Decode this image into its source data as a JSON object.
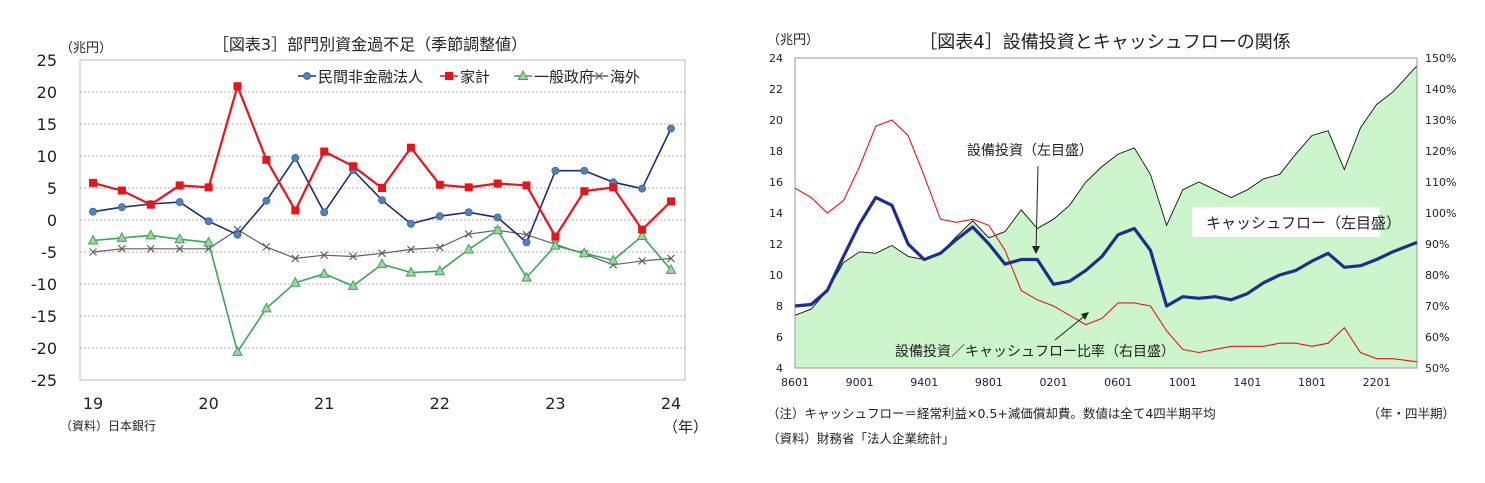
{
  "chart_data": [
    {
      "type": "line",
      "title": "［図表3］部門別資金過不足（季節調整値）",
      "ylabel": "（兆円）",
      "xlabel": "（年）",
      "source": "（資料）日本銀行",
      "ylim": [
        -25,
        25
      ],
      "yticks": [
        25,
        20,
        15,
        10,
        5,
        0,
        -5,
        -10,
        -15,
        -20,
        -25
      ],
      "xticks": [
        "19",
        "20",
        "21",
        "22",
        "23",
        "24"
      ],
      "grid": true,
      "legend_position": "top",
      "series": [
        {
          "name": "民間非金融法人",
          "color": "#4f81bd",
          "marker": "circle",
          "values": [
            1.3,
            2.0,
            2.5,
            2.8,
            -0.2,
            -2.3,
            3.0,
            9.7,
            1.2,
            7.8,
            3.1,
            -0.6,
            0.6,
            1.2,
            0.4,
            -3.5,
            7.7,
            7.7,
            5.9,
            4.9,
            14.3
          ]
        },
        {
          "name": "家計",
          "color": "#e8141c",
          "marker": "square",
          "values": [
            5.8,
            4.6,
            2.4,
            5.4,
            5.1,
            20.9,
            9.4,
            1.5,
            10.7,
            8.4,
            5.0,
            11.3,
            5.5,
            5.1,
            5.7,
            5.4,
            -2.6,
            4.5,
            5.1,
            -1.5,
            2.9
          ]
        },
        {
          "name": "一般政府",
          "color": "#3aa655",
          "marker": "triangle",
          "values": [
            -3.2,
            -2.8,
            -2.4,
            -3.0,
            -3.5,
            -20.6,
            -13.8,
            -9.8,
            -8.4,
            -10.3,
            -6.9,
            -8.2,
            -8.0,
            -4.6,
            -1.6,
            -9.0,
            -4.0,
            -5.2,
            -6.3,
            -2.5,
            -7.8
          ]
        },
        {
          "name": "海外",
          "color": "#606060",
          "marker": "x",
          "values": [
            -5.0,
            -4.5,
            -4.5,
            -4.5,
            -4.5,
            -1.5,
            -4.2,
            -6.0,
            -5.5,
            -5.7,
            -5.2,
            -4.6,
            -4.3,
            -2.2,
            -1.6,
            -2.3,
            -3.8,
            -5.3,
            -7.0,
            -6.4,
            -6.0
          ]
        }
      ]
    },
    {
      "type": "line",
      "title": "［図表4］設備投資とキャッシュフローの関係",
      "ylabel": "（兆円）",
      "xlabel": "（年・四半期）",
      "note": "（注）キャッシュフロー＝経常利益×0.5+減価償却費。数値は全て4四半期平均",
      "source": "（資料）財務省「法人企業統計」",
      "ylim": [
        4,
        24
      ],
      "yticks": [
        4,
        6,
        8,
        10,
        12,
        14,
        16,
        18,
        20,
        22,
        24
      ],
      "y2lim": [
        50,
        150
      ],
      "y2ticks": [
        "50%",
        "60%",
        "70%",
        "80%",
        "90%",
        "100%",
        "110%",
        "120%",
        "130%",
        "140%",
        "150%"
      ],
      "xticks": [
        "8601",
        "9001",
        "9401",
        "9801",
        "0201",
        "0601",
        "1001",
        "1401",
        "1801",
        "2201"
      ],
      "xrange": [
        1986.0,
        2024.5
      ],
      "annotations": [
        "設備投資（左目盛）",
        "キャッシュフロー（左目盛）",
        "設備投資／キャッシュフロー比率（右目盛）"
      ],
      "series": [
        {
          "name": "キャッシュフロー（左目盛）",
          "type": "area",
          "color": "#ccf5cc",
          "points": [
            [
              1986.0,
              7.4
            ],
            [
              1987.0,
              7.8
            ],
            [
              1988.0,
              9.0
            ],
            [
              1989.0,
              10.8
            ],
            [
              1990.0,
              11.5
            ],
            [
              1991.0,
              11.4
            ],
            [
              1992.0,
              11.9
            ],
            [
              1993.0,
              11.2
            ],
            [
              1994.0,
              11.0
            ],
            [
              1995.0,
              11.4
            ],
            [
              1996.0,
              12.5
            ],
            [
              1997.0,
              13.5
            ],
            [
              1998.0,
              12.4
            ],
            [
              1999.0,
              12.8
            ],
            [
              2000.0,
              14.2
            ],
            [
              2001.0,
              13.0
            ],
            [
              2002.0,
              13.6
            ],
            [
              2003.0,
              14.5
            ],
            [
              2004.0,
              16.0
            ],
            [
              2005.0,
              17.0
            ],
            [
              2006.0,
              17.8
            ],
            [
              2007.0,
              18.2
            ],
            [
              2008.0,
              16.5
            ],
            [
              2009.0,
              13.2
            ],
            [
              2010.0,
              15.5
            ],
            [
              2011.0,
              16.0
            ],
            [
              2012.0,
              15.5
            ],
            [
              2013.0,
              15.0
            ],
            [
              2014.0,
              15.5
            ],
            [
              2015.0,
              16.2
            ],
            [
              2016.0,
              16.5
            ],
            [
              2017.0,
              17.8
            ],
            [
              2018.0,
              19.0
            ],
            [
              2019.0,
              19.3
            ],
            [
              2020.0,
              16.8
            ],
            [
              2021.0,
              19.5
            ],
            [
              2022.0,
              21.0
            ],
            [
              2023.0,
              21.8
            ],
            [
              2024.5,
              23.5
            ]
          ]
        },
        {
          "name": "設備投資（左目盛）",
          "type": "line",
          "color": "#1f2e8c",
          "points": [
            [
              1986.0,
              8.0
            ],
            [
              1987.0,
              8.1
            ],
            [
              1988.0,
              9.0
            ],
            [
              1989.0,
              11.2
            ],
            [
              1990.0,
              13.3
            ],
            [
              1991.0,
              15.0
            ],
            [
              1992.0,
              14.5
            ],
            [
              1993.0,
              12.0
            ],
            [
              1994.0,
              11.0
            ],
            [
              1995.0,
              11.4
            ],
            [
              1996.0,
              12.3
            ],
            [
              1997.0,
              13.1
            ],
            [
              1998.0,
              12.0
            ],
            [
              1999.0,
              10.7
            ],
            [
              2000.0,
              11.0
            ],
            [
              2001.0,
              11.0
            ],
            [
              2002.0,
              9.4
            ],
            [
              2003.0,
              9.6
            ],
            [
              2004.0,
              10.3
            ],
            [
              2005.0,
              11.2
            ],
            [
              2006.0,
              12.6
            ],
            [
              2007.0,
              13.0
            ],
            [
              2008.0,
              11.6
            ],
            [
              2009.0,
              8.0
            ],
            [
              2010.0,
              8.6
            ],
            [
              2011.0,
              8.5
            ],
            [
              2012.0,
              8.6
            ],
            [
              2013.0,
              8.4
            ],
            [
              2014.0,
              8.8
            ],
            [
              2015.0,
              9.5
            ],
            [
              2016.0,
              10.0
            ],
            [
              2017.0,
              10.3
            ],
            [
              2018.0,
              10.9
            ],
            [
              2019.0,
              11.4
            ],
            [
              2020.0,
              10.5
            ],
            [
              2021.0,
              10.6
            ],
            [
              2022.0,
              11.0
            ],
            [
              2023.0,
              11.5
            ],
            [
              2024.5,
              12.1
            ]
          ]
        },
        {
          "name": "設備投資／キャッシュフロー比率（右目盛）",
          "type": "line",
          "color": "#e8141c",
          "axis": "right",
          "points": [
            [
              1986.0,
              108
            ],
            [
              1987.0,
              105
            ],
            [
              1988.0,
              100
            ],
            [
              1989.0,
              104
            ],
            [
              1990.0,
              115
            ],
            [
              1991.0,
              128
            ],
            [
              1992.0,
              130
            ],
            [
              1993.0,
              125
            ],
            [
              1994.0,
              112
            ],
            [
              1995.0,
              98
            ],
            [
              1996.0,
              97
            ],
            [
              1997.0,
              98
            ],
            [
              1998.0,
              96
            ],
            [
              1999.0,
              88
            ],
            [
              2000.0,
              75
            ],
            [
              2001.0,
              72
            ],
            [
              2002.0,
              70
            ],
            [
              2003.0,
              67
            ],
            [
              2004.0,
              64
            ],
            [
              2005.0,
              66
            ],
            [
              2006.0,
              71
            ],
            [
              2007.0,
              71
            ],
            [
              2008.0,
              70
            ],
            [
              2009.0,
              62
            ],
            [
              2010.0,
              56
            ],
            [
              2011.0,
              55
            ],
            [
              2012.0,
              56
            ],
            [
              2013.0,
              57
            ],
            [
              2014.0,
              57
            ],
            [
              2015.0,
              57
            ],
            [
              2016.0,
              58
            ],
            [
              2017.0,
              58
            ],
            [
              2018.0,
              57
            ],
            [
              2019.0,
              58
            ],
            [
              2020.0,
              63
            ],
            [
              2021.0,
              55
            ],
            [
              2022.0,
              53
            ],
            [
              2023.0,
              53
            ],
            [
              2024.5,
              52
            ]
          ]
        }
      ]
    }
  ]
}
